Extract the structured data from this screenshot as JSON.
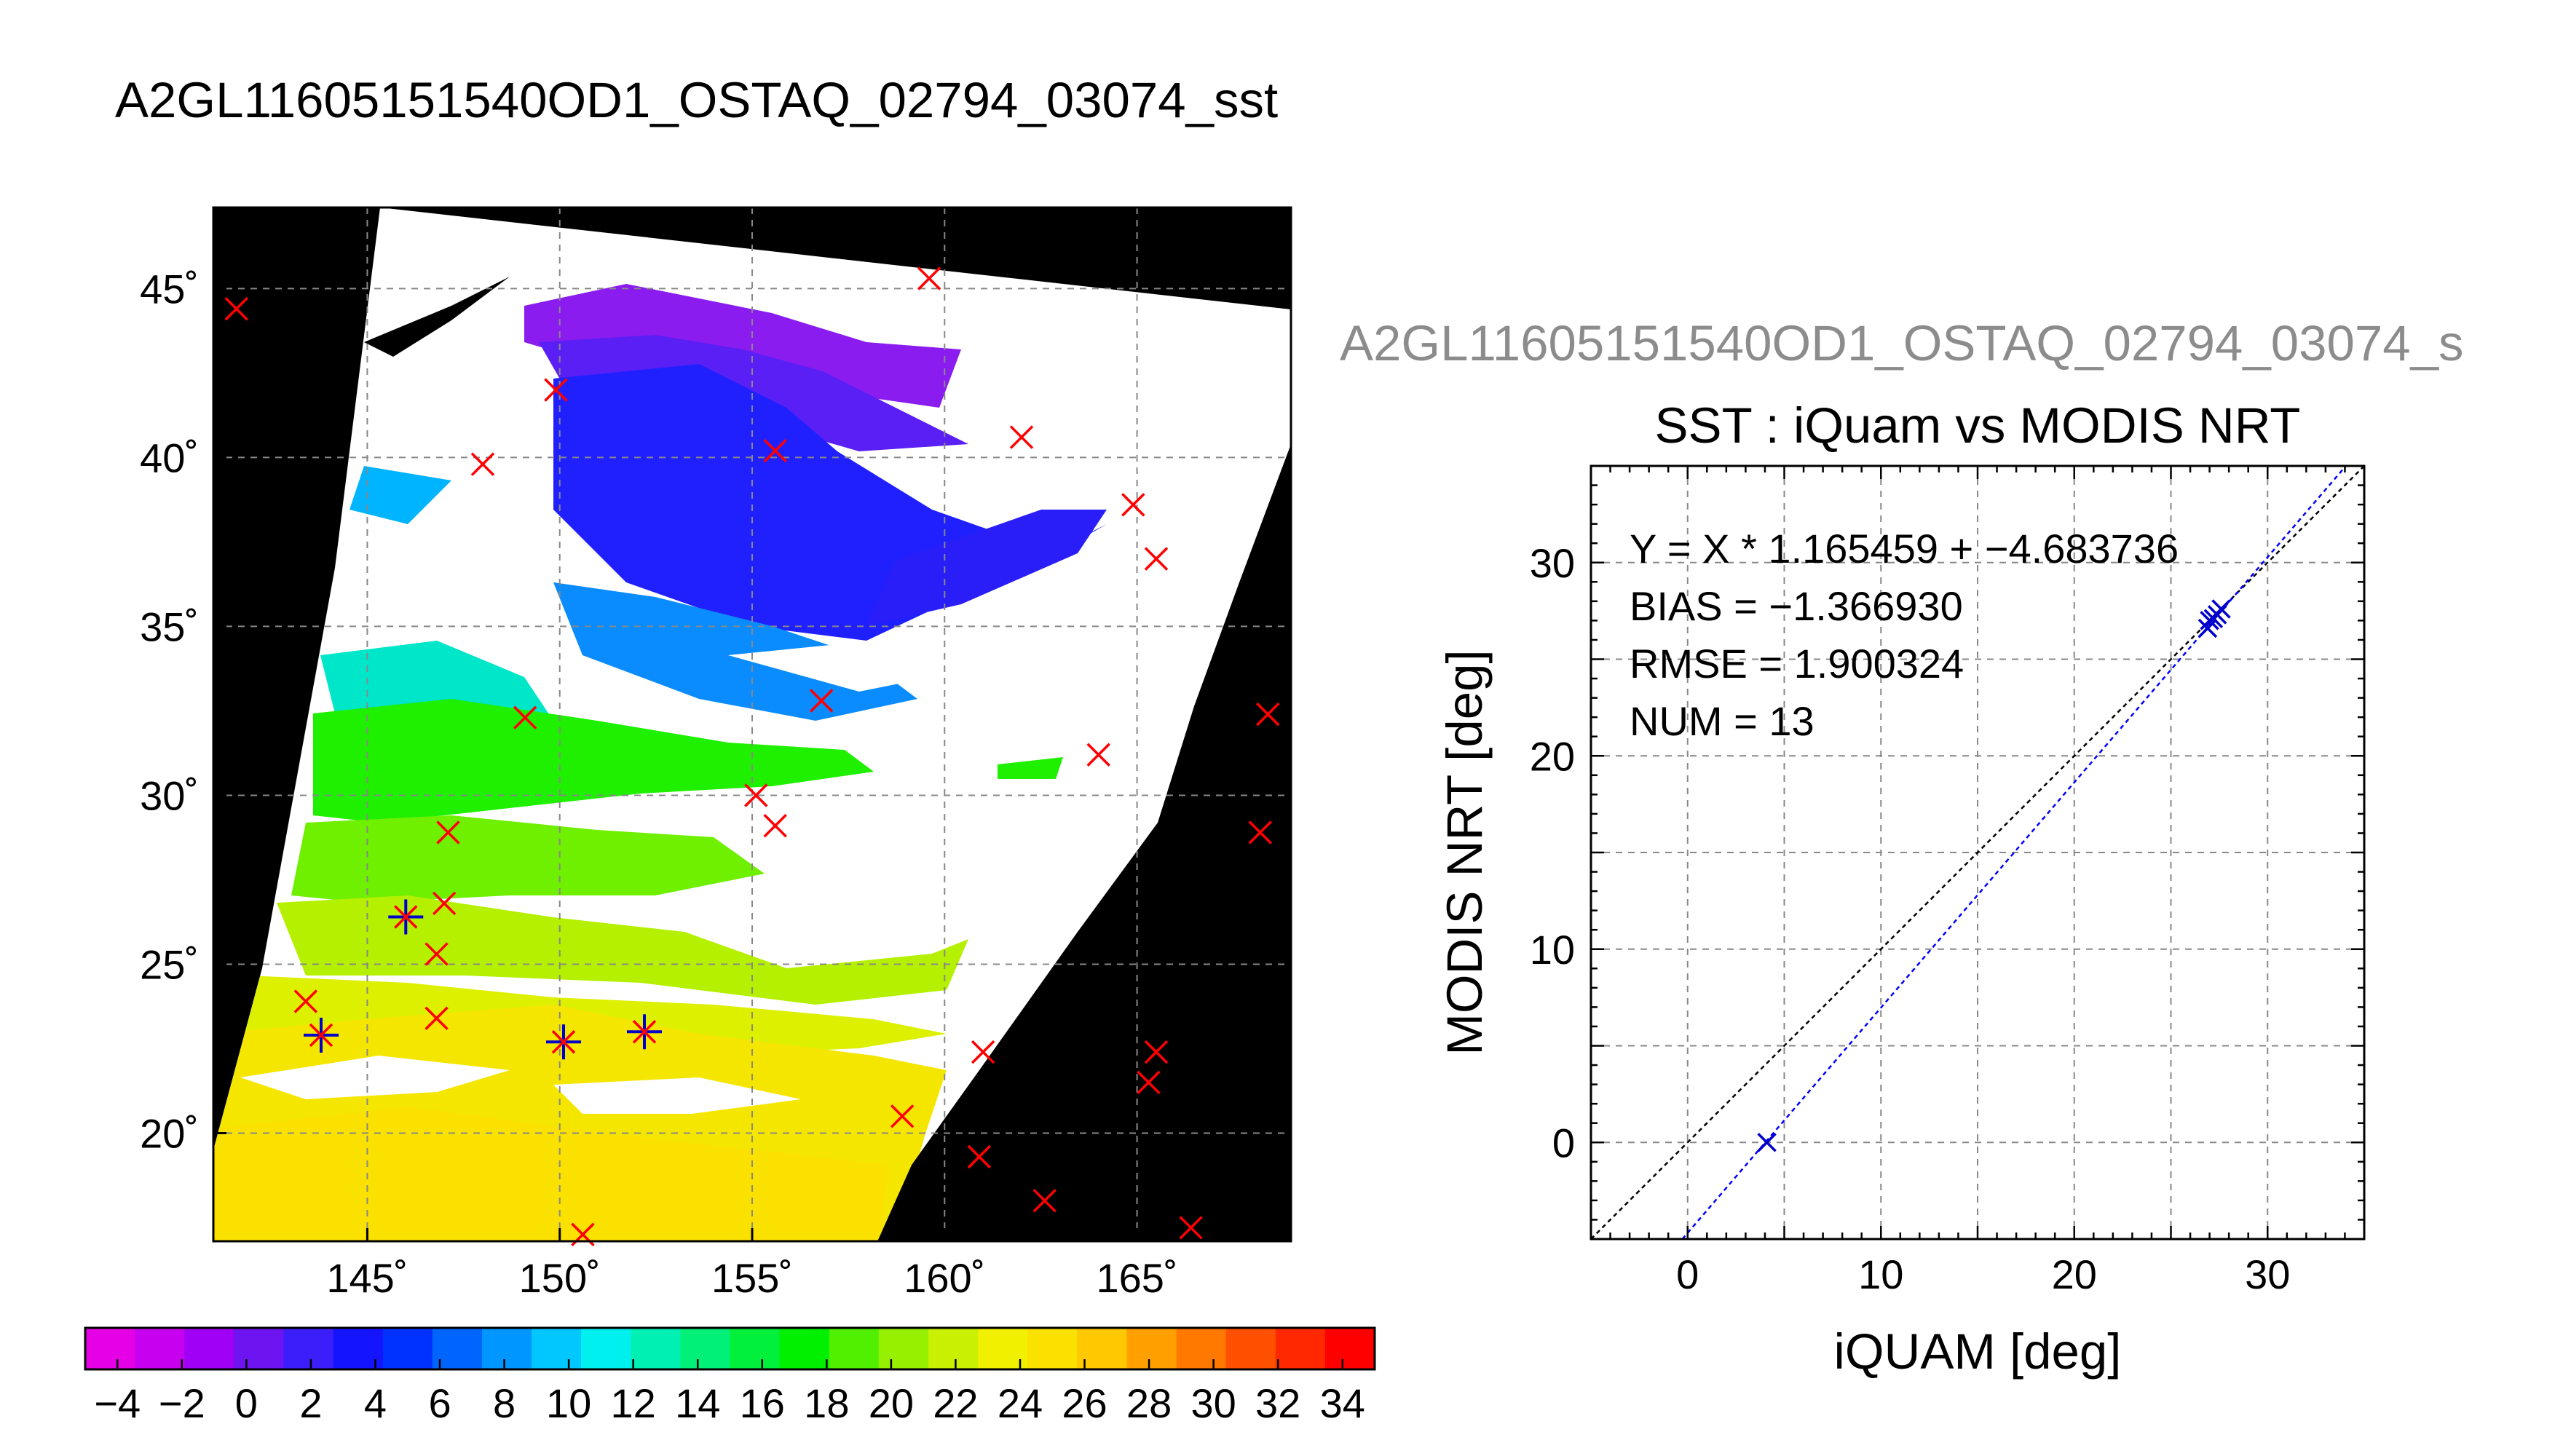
{
  "title": "A2GL11605151540OD1_OSTAQ_02794_03074_sst",
  "scatter_file_title": "A2GL11605151540OD1_OSTAQ_02794_03074_s",
  "colors": {
    "background": "#ffffff",
    "map_fill": "#000000",
    "grid": "#888888",
    "marker_iquam": "#ff0000",
    "marker_match": "#0000cc",
    "fit_line": "#0000ff",
    "identity_line": "#000000"
  },
  "chart_data": [
    {
      "type": "heatmap",
      "title": "",
      "xlim": [
        141,
        169
      ],
      "ylim": [
        16.8,
        47.4
      ],
      "x_ticks": [
        145,
        150,
        155,
        160,
        165
      ],
      "x_tick_labels": [
        "145˚",
        "150˚",
        "155˚",
        "160˚",
        "165˚"
      ],
      "y_ticks": [
        20,
        25,
        30,
        35,
        40,
        45
      ],
      "y_tick_labels": [
        "20˚",
        "25˚",
        "30˚",
        "35˚",
        "40˚",
        "45˚"
      ],
      "grid": true,
      "variable": "sst",
      "iquam_points": [
        [
          141.6,
          44.4
        ],
        [
          149.9,
          42.0
        ],
        [
          159.6,
          45.3
        ],
        [
          148.0,
          39.8
        ],
        [
          155.6,
          40.2
        ],
        [
          162.0,
          40.6
        ],
        [
          164.9,
          38.6
        ],
        [
          165.5,
          37.0
        ],
        [
          149.1,
          32.3
        ],
        [
          156.8,
          32.8
        ],
        [
          168.4,
          32.4
        ],
        [
          164.0,
          31.2
        ],
        [
          155.1,
          30.0
        ],
        [
          155.6,
          29.1
        ],
        [
          147.1,
          28.9
        ],
        [
          168.2,
          28.9
        ],
        [
          147.0,
          26.8
        ],
        [
          146.0,
          26.4
        ],
        [
          146.8,
          25.3
        ],
        [
          143.4,
          23.9
        ],
        [
          143.8,
          22.9
        ],
        [
          146.8,
          23.4
        ],
        [
          150.1,
          22.7
        ],
        [
          152.2,
          23.0
        ],
        [
          161.0,
          22.4
        ],
        [
          165.5,
          22.4
        ],
        [
          165.3,
          21.5
        ],
        [
          158.9,
          20.5
        ],
        [
          160.9,
          19.3
        ],
        [
          162.6,
          18.0
        ],
        [
          166.4,
          17.2
        ],
        [
          150.6,
          17.0
        ]
      ],
      "matched_points": [
        [
          146.0,
          26.4
        ],
        [
          143.8,
          22.9
        ],
        [
          150.1,
          22.7
        ],
        [
          152.2,
          23.0
        ]
      ]
    },
    {
      "type": "scatter",
      "title": "SST : iQuam vs MODIS NRT",
      "xlabel": "iQUAM [deg]",
      "ylabel": "MODIS NRT [deg]",
      "xlim": [
        -5,
        35
      ],
      "ylim": [
        -5,
        35
      ],
      "x_ticks": [
        0,
        10,
        20,
        30
      ],
      "y_ticks": [
        0,
        10,
        20,
        30
      ],
      "grid": true,
      "points": [
        [
          4.1,
          0.0
        ],
        [
          26.9,
          26.6
        ],
        [
          27.0,
          27.0
        ],
        [
          27.2,
          27.1
        ],
        [
          27.4,
          27.3
        ],
        [
          27.6,
          27.6
        ]
      ],
      "fit": {
        "slope": 1.165459,
        "intercept": -4.683736
      },
      "stats": {
        "equation": "Y = X * 1.165459 + −4.683736",
        "bias": "BIAS = −1.366930",
        "rmse": "RMSE = 1.900324",
        "num": "NUM = 13"
      }
    },
    {
      "type": "heatmap",
      "title": "",
      "colorbar_min": -5,
      "colorbar_max": 35,
      "colorbar_labels": [
        "−4",
        "−2",
        "0",
        "2",
        "4",
        "6",
        "8",
        "10",
        "12",
        "14",
        "16",
        "18",
        "20",
        "22",
        "24",
        "26",
        "28",
        "30",
        "32",
        "34"
      ],
      "colorbar_label_values": [
        -4,
        -2,
        0,
        2,
        4,
        6,
        8,
        10,
        12,
        14,
        16,
        18,
        20,
        22,
        24,
        26,
        28,
        30,
        32,
        34
      ],
      "colorbar_colors": [
        "#e600e6",
        "#c800f0",
        "#a000f5",
        "#6e14f0",
        "#3c1efa",
        "#1414ff",
        "#0032ff",
        "#0064ff",
        "#0096ff",
        "#00c8ff",
        "#00f0f0",
        "#00f0b4",
        "#00f078",
        "#00f03c",
        "#00f000",
        "#50f000",
        "#96f000",
        "#c8f000",
        "#f0f000",
        "#fae100",
        "#ffc800",
        "#ffa000",
        "#ff7800",
        "#ff5000",
        "#ff2800",
        "#ff0000"
      ]
    }
  ]
}
